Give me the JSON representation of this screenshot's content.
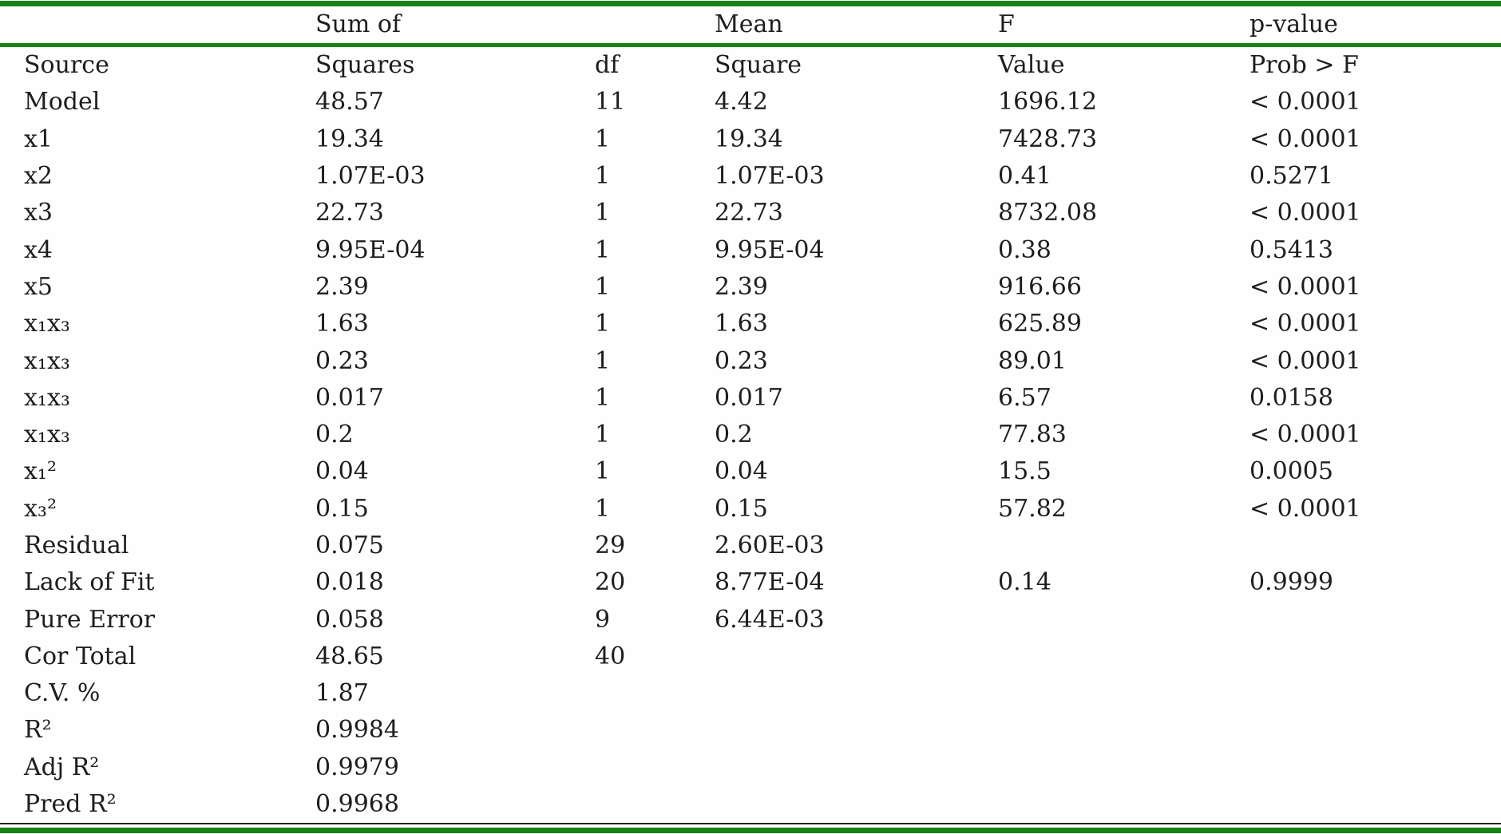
{
  "colors": {
    "accent_green": "#168216",
    "rule_black": "#242424",
    "text": "#1d1d1d",
    "background": "#fefefe"
  },
  "table": {
    "header_row1": {
      "cells": [
        "",
        "Sum of",
        "",
        "Mean",
        "F",
        "p-value"
      ]
    },
    "header_row2": {
      "cells": [
        "Source",
        "Squares",
        "df",
        "Square",
        "Value",
        "Prob > F"
      ]
    },
    "rows": [
      {
        "cells": [
          "Model",
          "48.57",
          "11",
          "4.42",
          "1696.12",
          "< 0.0001"
        ]
      },
      {
        "cells": [
          "x1",
          "19.34",
          "1",
          "19.34",
          "7428.73",
          "< 0.0001"
        ]
      },
      {
        "cells": [
          "x2",
          "1.07E-03",
          "1",
          "1.07E-03",
          "0.41",
          "0.5271"
        ]
      },
      {
        "cells": [
          "x3",
          "22.73",
          "1",
          "22.73",
          "8732.08",
          "< 0.0001"
        ]
      },
      {
        "cells": [
          "x4",
          "9.95E-04",
          "1",
          "9.95E-04",
          "0.38",
          "0.5413"
        ]
      },
      {
        "cells": [
          "x5",
          "2.39",
          "1",
          "2.39",
          "916.66",
          "< 0.0001"
        ]
      },
      {
        "cells": [
          "x₁x₃",
          "1.63",
          "1",
          "1.63",
          "625.89",
          "< 0.0001"
        ]
      },
      {
        "cells": [
          "x₁x₃",
          "0.23",
          "1",
          "0.23",
          "89.01",
          "< 0.0001"
        ]
      },
      {
        "cells": [
          "x₁x₃",
          "0.017",
          "1",
          "0.017",
          "6.57",
          "0.0158"
        ]
      },
      {
        "cells": [
          "x₁x₃",
          "0.2",
          "1",
          "0.2",
          "77.83",
          "< 0.0001"
        ]
      },
      {
        "cells": [
          "x₁²",
          "0.04",
          "1",
          "0.04",
          "15.5",
          "0.0005"
        ]
      },
      {
        "cells": [
          "x₃²",
          "0.15",
          "1",
          "0.15",
          "57.82",
          "< 0.0001"
        ]
      },
      {
        "cells": [
          "Residual",
          "0.075",
          "29",
          "2.60E-03",
          "",
          ""
        ]
      },
      {
        "cells": [
          "Lack of Fit",
          "0.018",
          "20",
          "8.77E-04",
          "0.14",
          "0.9999"
        ]
      },
      {
        "cells": [
          "Pure Error",
          "0.058",
          "9",
          "6.44E-03",
          "",
          ""
        ]
      },
      {
        "cells": [
          "Cor Total",
          "48.65",
          "40",
          "",
          "",
          ""
        ]
      },
      {
        "cells": [
          "C.V. %",
          "1.87",
          "",
          "",
          "",
          ""
        ]
      },
      {
        "cells": [
          "R²",
          "0.9984",
          "",
          "",
          "",
          ""
        ]
      },
      {
        "cells": [
          "Adj R²",
          "0.9979",
          "",
          "",
          "",
          ""
        ]
      },
      {
        "cells": [
          "Pred R²",
          "0.9968",
          "",
          "",
          "",
          ""
        ]
      }
    ]
  }
}
